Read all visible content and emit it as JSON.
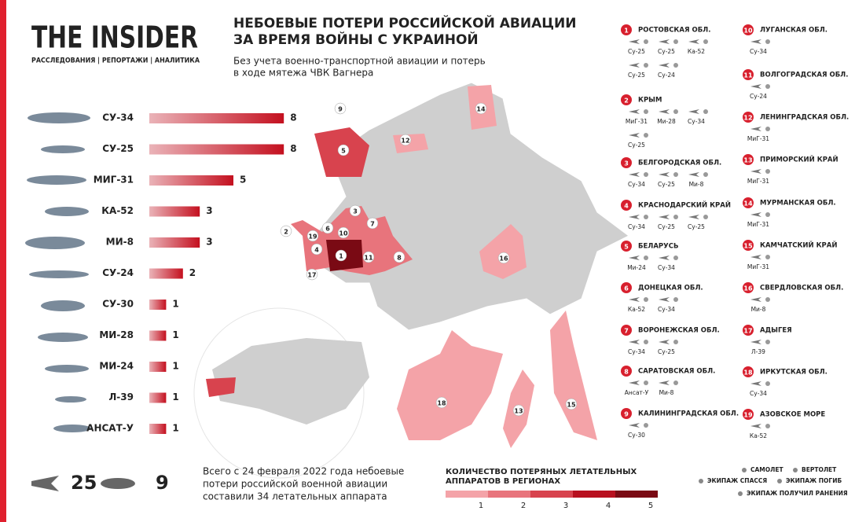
{
  "header": {
    "logo": "THE INSIDER",
    "tagline": "РАССЛЕДОВАНИЯ | РЕПОРТАЖИ | АНАЛИТИКА",
    "title": [
      "НЕБОЕВЫЕ ПОТЕРИ РОССИЙСКОЙ АВИАЦИИ",
      "ЗА ВРЕМЯ ВОЙНЫ С УКРАИНОЙ"
    ],
    "subtitle": [
      "Без учета военно-транспортной авиации и потерь",
      "в ходе мятежа ЧВК Вагнера"
    ]
  },
  "chart_data": {
    "type": "bar",
    "orientation": "horizontal",
    "categories": [
      "СУ-34",
      "СУ-25",
      "МИГ-31",
      "КА-52",
      "МИ-8",
      "СУ-24",
      "СУ-30",
      "МИ-28",
      "МИ-24",
      "Л-39",
      "АНСАТ-У"
    ],
    "values": [
      8,
      8,
      5,
      3,
      3,
      2,
      1,
      1,
      1,
      1,
      1
    ],
    "color": "#c4101f"
  },
  "totals": {
    "planes": 25,
    "helicopters": 9,
    "text": [
      "Всего с 24 февраля 2022 года небоевые",
      "потери российской военной авиации",
      "составили 34 летательных аппарата"
    ]
  },
  "map": {
    "markers": [
      "9",
      "14",
      "12",
      "5",
      "3",
      "7",
      "2",
      "19",
      "6",
      "10",
      "4",
      "1",
      "11",
      "8",
      "17",
      "16",
      "18",
      "13",
      "15"
    ]
  },
  "scale": {
    "title": [
      "КОЛИЧЕСТВО ПОТЕРЯНЫХ ЛЕТАТЕЛЬНЫХ",
      "АППАРАТОВ В РЕГИОНАХ"
    ],
    "ticks": [
      1,
      2,
      3,
      4,
      5
    ],
    "colors": [
      "#f4a3a8",
      "#e8747c",
      "#d8434e",
      "#b8101f",
      "#7a0a14"
    ]
  },
  "regions": [
    {
      "number": "1",
      "name": "РОСТОВСКАЯ ОБЛ.",
      "aircraft": [
        "Су-25",
        "Су-25",
        "Ка-52",
        "Су-25",
        "Су-24"
      ]
    },
    {
      "number": "2",
      "name": "КРЫМ",
      "aircraft": [
        "МиГ-31",
        "Ми-28",
        "Су-34",
        "Су-25"
      ]
    },
    {
      "number": "3",
      "name": "БЕЛГОРОДСКАЯ ОБЛ.",
      "aircraft": [
        "Су-34",
        "Су-25",
        "Ми-8"
      ]
    },
    {
      "number": "4",
      "name": "КРАСНОДАРСКИЙ КРАЙ",
      "aircraft": [
        "Су-34",
        "Су-25",
        "Су-25"
      ]
    },
    {
      "number": "5",
      "name": "БЕЛАРУСЬ",
      "aircraft": [
        "Ми-24",
        "Су-34"
      ]
    },
    {
      "number": "6",
      "name": "ДОНЕЦКАЯ ОБЛ.",
      "aircraft": [
        "Ка-52",
        "Су-34"
      ]
    },
    {
      "number": "7",
      "name": "ВОРОНЕЖСКАЯ ОБЛ.",
      "aircraft": [
        "Су-34",
        "Су-25"
      ]
    },
    {
      "number": "8",
      "name": "САРАТОВСКАЯ ОБЛ.",
      "aircraft": [
        "Ансат-У",
        "Ми-8"
      ]
    },
    {
      "number": "9",
      "name": "КАЛИНИНГРАДСКАЯ ОБЛ.",
      "aircraft": [
        "Су-30"
      ]
    },
    {
      "number": "10",
      "name": "ЛУГАНСКАЯ ОБЛ.",
      "aircraft": [
        "Су-34"
      ]
    },
    {
      "number": "11",
      "name": "ВОЛГОГРАДСКАЯ ОБЛ.",
      "aircraft": [
        "Су-24"
      ]
    },
    {
      "number": "12",
      "name": "ЛЕНИНГРАДСКАЯ ОБЛ.",
      "aircraft": [
        "МиГ-31"
      ]
    },
    {
      "number": "13",
      "name": "ПРИМОРСКИЙ КРАЙ",
      "aircraft": [
        "МиГ-31"
      ]
    },
    {
      "number": "14",
      "name": "МУРМАНСКАЯ ОБЛ.",
      "aircraft": [
        "МиГ-31"
      ]
    },
    {
      "number": "15",
      "name": "КАМЧАТСКИЙ КРАЙ",
      "aircraft": [
        "МиГ-31"
      ]
    },
    {
      "number": "16",
      "name": "СВЕРДЛОВСКАЯ ОБЛ.",
      "aircraft": [
        "Ми-8"
      ]
    },
    {
      "number": "17",
      "name": "АДЫГЕЯ",
      "aircraft": [
        "Л-39"
      ]
    },
    {
      "number": "18",
      "name": "ИРКУТСКАЯ ОБЛ.",
      "aircraft": [
        "Су-34"
      ]
    },
    {
      "number": "19",
      "name": "АЗОВСКОЕ МОРЕ",
      "aircraft": [
        "Ка-52"
      ]
    }
  ],
  "legend": {
    "plane": "САМОЛЕТ",
    "helicopter": "ВЕРТОЛЕТ",
    "rescued": "ЭКИПАЖ СПАССЯ",
    "killed": "ЭКИПАЖ ПОГИБ",
    "injured": "ЭКИПАЖ ПОЛУЧИЛ РАНЕНИЯ"
  }
}
